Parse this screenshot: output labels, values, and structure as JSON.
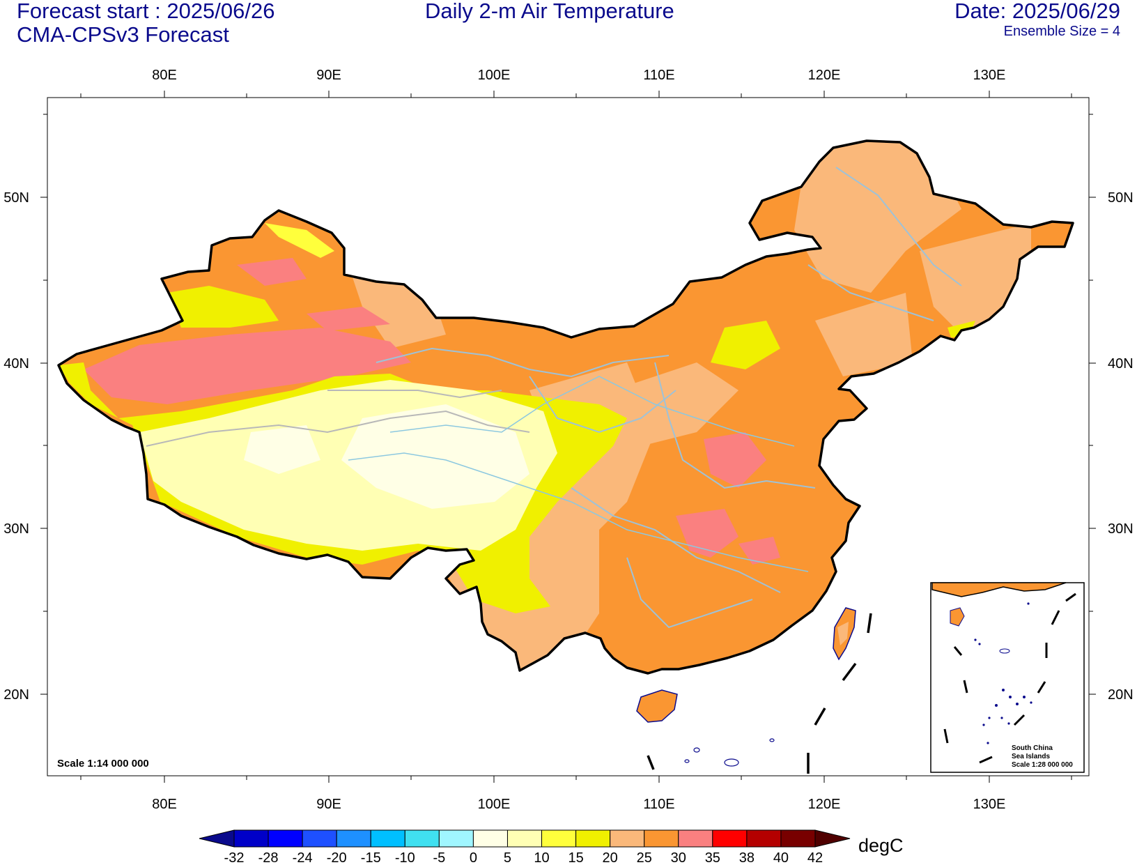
{
  "header": {
    "forecast_start": "Forecast start : 2025/06/26",
    "model": "CMA-CPSv3 Forecast",
    "title": "Daily 2-m Air Temperature",
    "date": "Date: 2025/06/29",
    "ensemble": "Ensemble Size = 4"
  },
  "map": {
    "lon_ticks": [
      "80E",
      "90E",
      "100E",
      "110E",
      "120E",
      "130E"
    ],
    "lat_ticks": [
      "50N",
      "40N",
      "30N",
      "20N"
    ],
    "scale_label": "Scale 1:14 000 000",
    "inset": {
      "line1": "South China",
      "line2": "Sea Islands",
      "line3": "Scale 1:28 000 000"
    }
  },
  "colorbar": {
    "unit": "degC",
    "levels": [
      "-32",
      "-28",
      "-24",
      "-20",
      "-15",
      "-10",
      "-5",
      "0",
      "5",
      "10",
      "15",
      "20",
      "25",
      "30",
      "35",
      "38",
      "40",
      "42"
    ],
    "colors": [
      "#0a0a8c",
      "#0000c8",
      "#0000ff",
      "#1e50ff",
      "#1e90ff",
      "#00bfff",
      "#40e0f0",
      "#a0f6ff",
      "#ffffe6",
      "#ffffb4",
      "#ffff3c",
      "#f0f000",
      "#fab87a",
      "#fa9632",
      "#fa8080",
      "#ff0000",
      "#b40000",
      "#780000",
      "#500000"
    ]
  },
  "chart_data": {
    "type": "heatmap",
    "variable": "Daily 2-m Air Temperature",
    "unit": "degC",
    "lon_range": [
      73,
      136
    ],
    "lat_range": [
      15,
      56
    ],
    "levels": [
      -32,
      -28,
      -24,
      -20,
      -15,
      -10,
      -5,
      0,
      5,
      10,
      15,
      20,
      25,
      30,
      35,
      38,
      40,
      42
    ]
  }
}
